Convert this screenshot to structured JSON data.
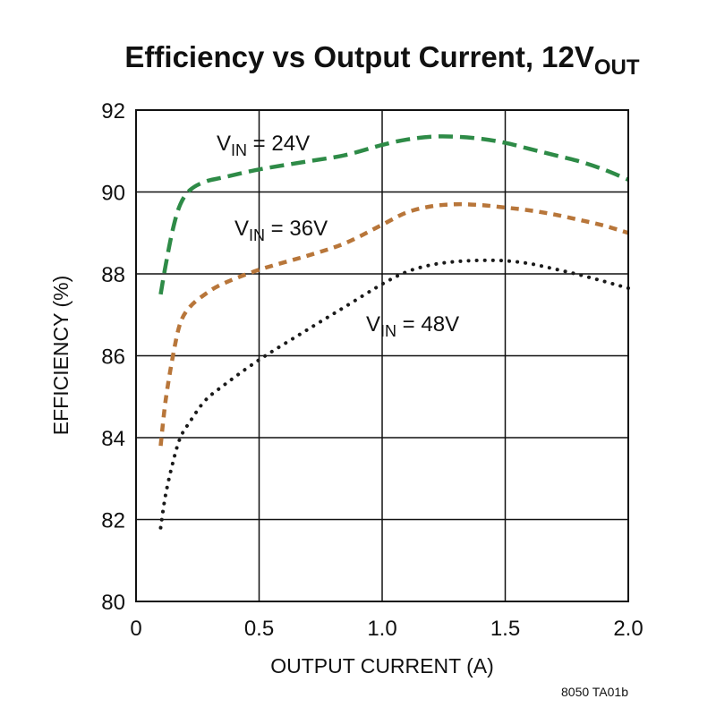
{
  "chart_data": {
    "type": "line",
    "title": "Efficiency vs Output Current, 12V",
    "title_subscript": "OUT",
    "xlabel": "OUTPUT CURRENT (A)",
    "ylabel": "EFFICIENCY (%)",
    "xlim": [
      0,
      2.0
    ],
    "ylim": [
      80,
      92
    ],
    "x_ticks": [
      0,
      0.5,
      1.0,
      1.5,
      2.0
    ],
    "x_tick_labels": [
      "0",
      "0.5",
      "1.0",
      "1.5",
      "2.0"
    ],
    "y_ticks": [
      80,
      82,
      84,
      86,
      88,
      90,
      92
    ],
    "y_tick_labels": [
      "80",
      "82",
      "84",
      "86",
      "88",
      "90",
      "92"
    ],
    "grid": true,
    "series": [
      {
        "name": "VIN = 24V",
        "label_prefix": "V",
        "label_sub": "IN",
        "label_suffix": " = 24V",
        "color": "#2e8b47",
        "style": "dashed",
        "x": [
          0.1,
          0.12,
          0.15,
          0.18,
          0.22,
          0.28,
          0.35,
          0.5,
          0.7,
          0.85,
          1.0,
          1.1,
          1.2,
          1.3,
          1.4,
          1.5,
          1.6,
          1.7,
          1.8,
          1.9,
          2.0
        ],
        "y": [
          87.5,
          88.2,
          89.1,
          89.7,
          90.05,
          90.25,
          90.35,
          90.55,
          90.75,
          90.9,
          91.15,
          91.28,
          91.35,
          91.35,
          91.3,
          91.2,
          91.05,
          90.9,
          90.75,
          90.55,
          90.3
        ]
      },
      {
        "name": "VIN = 36V",
        "label_prefix": "V",
        "label_sub": "IN",
        "label_suffix": " = 36V",
        "color": "#b8763a",
        "style": "short-dashed",
        "x": [
          0.1,
          0.12,
          0.15,
          0.18,
          0.22,
          0.28,
          0.35,
          0.5,
          0.7,
          0.85,
          1.0,
          1.1,
          1.2,
          1.3,
          1.4,
          1.5,
          1.6,
          1.7,
          1.8,
          1.9,
          2.0
        ],
        "y": [
          83.8,
          84.9,
          86.0,
          86.8,
          87.2,
          87.5,
          87.75,
          88.1,
          88.45,
          88.75,
          89.2,
          89.5,
          89.65,
          89.7,
          89.68,
          89.62,
          89.55,
          89.45,
          89.32,
          89.18,
          89.0
        ]
      },
      {
        "name": "VIN = 48V",
        "label_prefix": "V",
        "label_sub": "IN",
        "label_suffix": " = 48V",
        "color": "#1a1a1a",
        "style": "dotted",
        "x": [
          0.1,
          0.12,
          0.15,
          0.18,
          0.22,
          0.28,
          0.35,
          0.5,
          0.7,
          0.85,
          1.0,
          1.1,
          1.2,
          1.3,
          1.4,
          1.5,
          1.6,
          1.7,
          1.8,
          1.9,
          2.0
        ],
        "y": [
          81.8,
          82.6,
          83.4,
          84.0,
          84.4,
          84.9,
          85.25,
          85.9,
          86.65,
          87.2,
          87.75,
          88.05,
          88.22,
          88.3,
          88.33,
          88.32,
          88.25,
          88.12,
          87.98,
          87.82,
          87.65
        ]
      }
    ],
    "footnote": "8050 TA01b"
  }
}
